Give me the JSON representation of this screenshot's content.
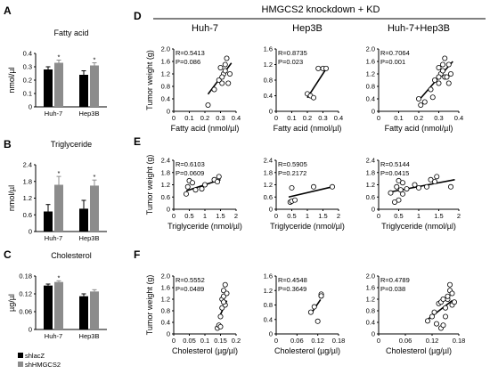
{
  "header": {
    "title": "HMGCS2 knockdown + KD"
  },
  "panel_letters": [
    "A",
    "B",
    "C",
    "D",
    "E",
    "F"
  ],
  "legend": [
    {
      "label": "shlacZ",
      "color": "#000000"
    },
    {
      "label": "shHMGCS2",
      "color": "#8c8c8c"
    }
  ],
  "colors": {
    "control": "#000000",
    "knockdown": "#8c8c8c",
    "axis": "#000000",
    "point_fill": "#ffffff"
  },
  "chart_data": [
    {
      "id": "A",
      "type": "bar",
      "title": "Fatty acid",
      "ylabel": "nmol/µl",
      "categories": [
        "Huh-7",
        "Hep3B"
      ],
      "series": [
        {
          "name": "shlacZ",
          "values": [
            0.28,
            0.24
          ],
          "errors": [
            0.02,
            0.03
          ]
        },
        {
          "name": "shHMGCS2",
          "values": [
            0.33,
            0.31
          ],
          "errors": [
            0.02,
            0.02
          ]
        }
      ],
      "significance": [
        "*",
        "*"
      ],
      "yticks": [
        "0",
        "0.1",
        "0.2",
        "0.3",
        "0.4"
      ],
      "ylim": [
        0,
        0.4
      ]
    },
    {
      "id": "B",
      "type": "bar",
      "title": "Triglyceride",
      "ylabel": "nmol/µl",
      "categories": [
        "Huh-7",
        "Hep3B"
      ],
      "series": [
        {
          "name": "shlacZ",
          "values": [
            0.72,
            0.82
          ],
          "errors": [
            0.25,
            0.3
          ]
        },
        {
          "name": "shHMGCS2",
          "values": [
            1.68,
            1.65
          ],
          "errors": [
            0.3,
            0.2
          ]
        }
      ],
      "significance": [
        "*",
        "*"
      ],
      "yticks": [
        "0",
        "0.6",
        "1.2",
        "1.8",
        "2.4"
      ],
      "ylim": [
        0,
        2.4
      ]
    },
    {
      "id": "C",
      "type": "bar",
      "title": "Cholesterol",
      "ylabel": "µg/µl",
      "categories": [
        "Huh-7",
        "Hep3B"
      ],
      "series": [
        {
          "name": "shlacZ",
          "values": [
            0.148,
            0.112
          ],
          "errors": [
            0.005,
            0.008
          ]
        },
        {
          "name": "shHMGCS2",
          "values": [
            0.16,
            0.128
          ],
          "errors": [
            0.004,
            0.006
          ]
        }
      ],
      "significance": [
        "*",
        ""
      ],
      "yticks": [
        "0",
        "0.06",
        "0.12",
        "0.18"
      ],
      "ylim": [
        0,
        0.18
      ]
    },
    {
      "id": "D1",
      "type": "scatter",
      "title": "Huh-7",
      "xlabel": "Fatty acid (nmol/µl)",
      "ylabel": "Tumor weight (g)",
      "stats": [
        "R=0.5413",
        "P=0.086"
      ],
      "xlim": [
        0,
        0.4
      ],
      "ylim": [
        0,
        2.0
      ],
      "xticks": [
        "0",
        "0.1",
        "0.2",
        "0.3",
        "0.4"
      ],
      "yticks": [
        "0",
        "0.4",
        "0.8",
        "1.2",
        "1.6",
        "2.0"
      ],
      "x": [
        0.22,
        0.26,
        0.29,
        0.3,
        0.31,
        0.32,
        0.33,
        0.34,
        0.35,
        0.36,
        0.31,
        0.33
      ],
      "y": [
        0.2,
        0.7,
        1.0,
        1.4,
        0.9,
        1.2,
        1.5,
        1.7,
        0.9,
        1.2,
        1.1,
        1.3
      ],
      "fit": [
        [
          0.22,
          0.55
        ],
        [
          0.37,
          1.55
        ]
      ]
    },
    {
      "id": "D2",
      "type": "scatter",
      "title": "Hep3B",
      "xlabel": "Fatty acid (nmol/µl)",
      "stats": [
        "R=0.8735",
        "P=0.023"
      ],
      "xlim": [
        0,
        0.4
      ],
      "ylim": [
        0,
        1.6
      ],
      "xticks": [
        "0",
        "0.1",
        "0.2",
        "0.3",
        "0.4"
      ],
      "yticks": [
        "0",
        "0.4",
        "0.8",
        "1.2",
        "1.6"
      ],
      "x": [
        0.2,
        0.22,
        0.24,
        0.27,
        0.3,
        0.32
      ],
      "y": [
        0.45,
        0.4,
        0.35,
        1.1,
        1.1,
        1.1
      ],
      "fit": [
        [
          0.2,
          0.35
        ],
        [
          0.33,
          1.15
        ]
      ]
    },
    {
      "id": "D3",
      "type": "scatter",
      "title": "Huh-7+Hep3B",
      "xlabel": "Fatty acid (nmol/µl)",
      "stats": [
        "R=0.7064",
        "P=0.001"
      ],
      "xlim": [
        0,
        0.4
      ],
      "ylim": [
        0,
        2.0
      ],
      "xticks": [
        "0",
        "0.1",
        "0.2",
        "0.3",
        "0.4"
      ],
      "yticks": [
        "0",
        "0.4",
        "0.8",
        "1.2",
        "1.6",
        "2.0"
      ],
      "x": [
        0.2,
        0.21,
        0.23,
        0.26,
        0.28,
        0.3,
        0.3,
        0.31,
        0.32,
        0.33,
        0.33,
        0.34,
        0.35,
        0.36,
        0.3,
        0.32,
        0.27,
        0.35
      ],
      "y": [
        0.4,
        0.2,
        0.3,
        0.7,
        1.0,
        1.4,
        0.9,
        1.2,
        1.5,
        1.7,
        1.1,
        1.1,
        0.9,
        1.2,
        1.1,
        1.3,
        0.45,
        1.5
      ],
      "fit": [
        [
          0.2,
          0.35
        ],
        [
          0.37,
          1.6
        ]
      ]
    },
    {
      "id": "E1",
      "type": "scatter",
      "title": "",
      "xlabel": "Triglyceride (nmol/µl)",
      "ylabel": "Tumor weight (g)",
      "stats": [
        "R=0.6103",
        "P=0.0609"
      ],
      "xlim": [
        0,
        2
      ],
      "ylim": [
        0,
        2.4
      ],
      "xticks": [
        "0",
        "0.5",
        "1",
        "1.5",
        "2"
      ],
      "yticks": [
        "0",
        "0.6",
        "1.2",
        "1.8",
        "2.4"
      ],
      "x": [
        0.4,
        0.45,
        0.5,
        0.6,
        0.7,
        0.9,
        1.0,
        1.3,
        1.4,
        1.45
      ],
      "y": [
        0.75,
        1.1,
        1.4,
        1.3,
        0.95,
        1.0,
        1.2,
        1.45,
        1.35,
        1.6
      ],
      "fit": [
        [
          0.4,
          0.9
        ],
        [
          1.5,
          1.45
        ]
      ]
    },
    {
      "id": "E2",
      "type": "scatter",
      "title": "",
      "xlabel": "Triglyceride (nmol/µl)",
      "stats": [
        "R=0.5905",
        "P=0.2172"
      ],
      "xlim": [
        0,
        2
      ],
      "ylim": [
        0,
        2.4
      ],
      "xticks": [
        "0",
        "0.5",
        "1",
        "1.5",
        "2"
      ],
      "yticks": [
        "0",
        "0.6",
        "1.2",
        "1.8",
        "2.4"
      ],
      "x": [
        0.45,
        0.5,
        0.6,
        0.5,
        1.2,
        1.8
      ],
      "y": [
        0.35,
        0.4,
        0.45,
        1.05,
        1.1,
        1.1
      ],
      "fit": [
        [
          0.4,
          0.6
        ],
        [
          1.8,
          1.1
        ]
      ]
    },
    {
      "id": "E3",
      "type": "scatter",
      "title": "",
      "xlabel": "Triglyceride (nmol/µl)",
      "stats": [
        "R=0.5144",
        "P=0.0415"
      ],
      "xlim": [
        0,
        2
      ],
      "ylim": [
        0,
        2.4
      ],
      "xticks": [
        "0",
        "0.5",
        "1",
        "1.5",
        "2"
      ],
      "yticks": [
        "0",
        "0.6",
        "1.2",
        "1.8",
        "2.4"
      ],
      "x": [
        0.3,
        0.4,
        0.45,
        0.5,
        0.5,
        0.55,
        0.6,
        0.6,
        0.7,
        0.9,
        1.0,
        1.2,
        1.3,
        1.4,
        1.45,
        1.8
      ],
      "y": [
        0.8,
        0.35,
        1.1,
        0.45,
        1.4,
        0.95,
        1.3,
        0.75,
        1.0,
        1.2,
        1.05,
        1.1,
        1.45,
        1.35,
        1.6,
        1.1
      ],
      "fit": [
        [
          0.3,
          0.85
        ],
        [
          1.9,
          1.45
        ]
      ]
    },
    {
      "id": "F1",
      "type": "scatter",
      "title": "",
      "xlabel": "Cholesterol (µg/µl)",
      "ylabel": "Tumor weight (g)",
      "stats": [
        "R=0.5552",
        "P=0.0489"
      ],
      "xlim": [
        0,
        0.2
      ],
      "ylim": [
        0,
        2.0
      ],
      "xticks": [
        "0",
        "0.05",
        "0.1",
        "0.15",
        "0.2"
      ],
      "yticks": [
        "0",
        "0.4",
        "0.8",
        "1.2",
        "1.6",
        "2.0"
      ],
      "x": [
        0.14,
        0.145,
        0.15,
        0.155,
        0.155,
        0.16,
        0.16,
        0.165,
        0.165,
        0.17,
        0.15,
        0.16
      ],
      "y": [
        0.2,
        0.3,
        0.6,
        0.9,
        1.2,
        1.3,
        1.5,
        1.7,
        1.0,
        1.4,
        0.25,
        1.1
      ],
      "fit": [
        [
          0.145,
          0.55
        ],
        [
          0.17,
          1.15
        ]
      ]
    },
    {
      "id": "F2",
      "type": "scatter",
      "title": "",
      "xlabel": "Cholesterol (µg/µl)",
      "stats": [
        "R=0.4548",
        "P=0.3649"
      ],
      "xlim": [
        0,
        0.18
      ],
      "ylim": [
        0,
        1.6
      ],
      "xticks": [
        "0",
        "0.06",
        "0.12",
        "0.18"
      ],
      "yticks": [
        "0",
        "0.4",
        "0.8",
        "1.2",
        "1.6"
      ],
      "x": [
        0.1,
        0.11,
        0.12,
        0.13,
        0.13,
        0.13
      ],
      "y": [
        0.6,
        0.75,
        0.35,
        1.05,
        1.1,
        1.05
      ],
      "fit": [
        [
          0.1,
          0.55
        ],
        [
          0.128,
          0.95
        ]
      ]
    },
    {
      "id": "F3",
      "type": "scatter",
      "title": "",
      "xlabel": "Cholesterol (µg/µl)",
      "stats": [
        "R=0.4789",
        "P=0.038"
      ],
      "xlim": [
        0,
        0.18
      ],
      "ylim": [
        0,
        2.0
      ],
      "xticks": [
        "0",
        "0.06",
        "0.12",
        "0.18"
      ],
      "yticks": [
        "0",
        "0.4",
        "0.8",
        "1.2",
        "1.6",
        "2.0"
      ],
      "x": [
        0.11,
        0.12,
        0.125,
        0.13,
        0.135,
        0.14,
        0.14,
        0.145,
        0.15,
        0.15,
        0.155,
        0.155,
        0.16,
        0.16,
        0.165,
        0.165,
        0.17,
        0.145
      ],
      "y": [
        0.45,
        0.6,
        0.75,
        0.35,
        1.05,
        1.1,
        0.2,
        0.3,
        0.6,
        0.9,
        1.2,
        1.3,
        1.5,
        1.7,
        1.0,
        1.4,
        1.1,
        1.2
      ],
      "fit": [
        [
          0.11,
          0.5
        ],
        [
          0.165,
          1.15
        ]
      ]
    }
  ]
}
